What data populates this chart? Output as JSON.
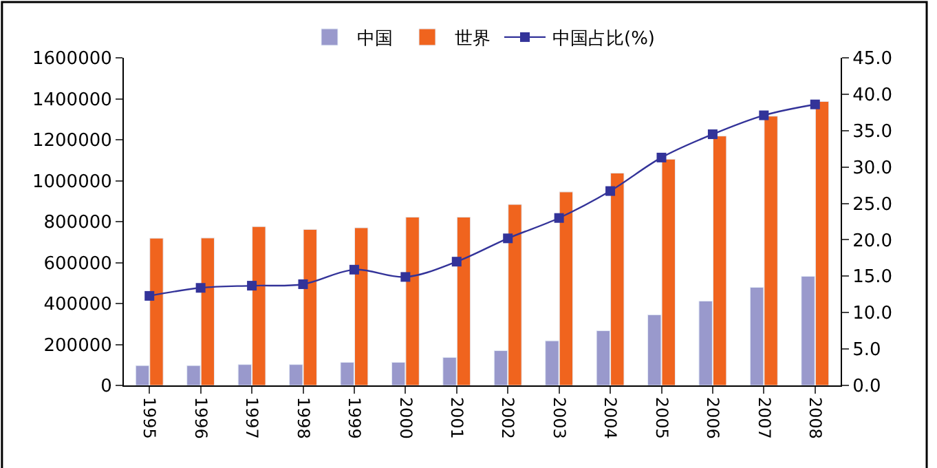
{
  "chart_data": {
    "type": "bar",
    "categories": [
      "1995",
      "1996",
      "1997",
      "1998",
      "1999",
      "2000",
      "2001",
      "2002",
      "2003",
      "2004",
      "2005",
      "2006",
      "2007",
      "2008"
    ],
    "series": [
      {
        "name": "中国",
        "color": "#9999cc",
        "values": [
          97000,
          97000,
          102000,
          102000,
          113000,
          113000,
          137000,
          170000,
          218000,
          267000,
          345000,
          412000,
          479000,
          533000
        ]
      },
      {
        "name": "世界",
        "color": "#f0641e",
        "values": [
          719000,
          720000,
          776000,
          762000,
          770000,
          822000,
          822000,
          884000,
          945000,
          1037000,
          1105000,
          1218000,
          1315000,
          1387000
        ]
      },
      {
        "name": "中国占比(%)",
        "color": "#333399",
        "type": "line",
        "axis": "y2",
        "marker": "square",
        "values": [
          12.3,
          13.4,
          13.7,
          13.9,
          15.9,
          14.9,
          17.0,
          20.2,
          23.0,
          26.7,
          31.3,
          34.5,
          37.1,
          38.6
        ]
      }
    ],
    "ylim": [
      0,
      1600000
    ],
    "yticks": [
      0,
      200000,
      400000,
      600000,
      800000,
      1000000,
      1200000,
      1400000,
      1600000
    ],
    "y2lim": [
      0,
      45
    ],
    "y2ticks": [
      {
        "value": 0,
        "label": "0.0"
      },
      {
        "value": 5,
        "label": "5.0"
      },
      {
        "value": 10,
        "label": "10.0"
      },
      {
        "value": 15,
        "label": "15.0"
      },
      {
        "value": 20,
        "label": "20.0"
      },
      {
        "value": 25,
        "label": "25.0"
      },
      {
        "value": 30,
        "label": "30.0"
      },
      {
        "value": 35,
        "label": "35.0"
      },
      {
        "value": 40,
        "label": "40.0"
      },
      {
        "value": 45,
        "label": "45.0"
      }
    ],
    "legend": "top"
  }
}
